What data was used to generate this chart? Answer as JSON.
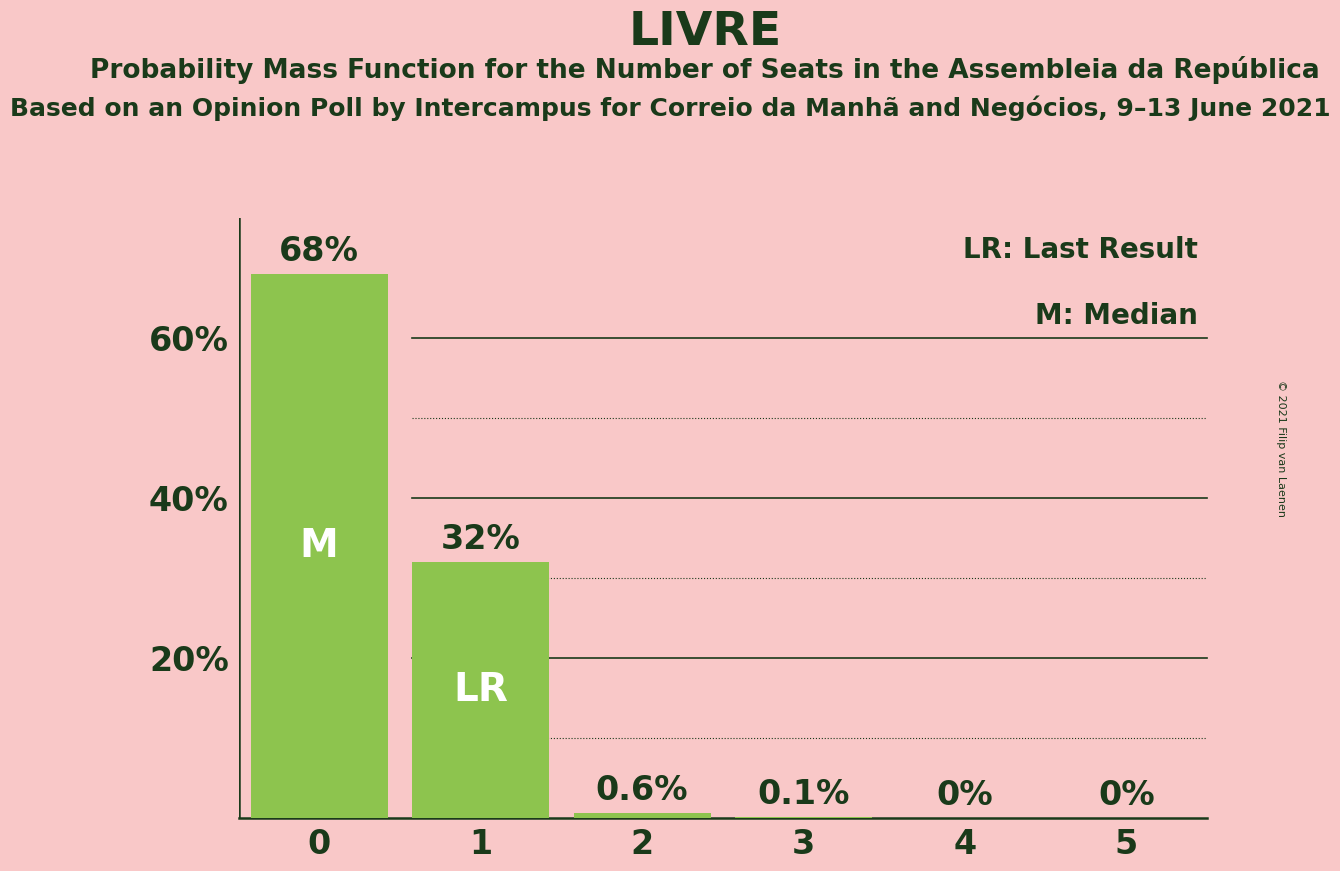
{
  "title": "LIVRE",
  "subtitle1": "Probability Mass Function for the Number of Seats in the Assembleia da República",
  "subtitle2": "Based on an Opinion Poll by Intercampus for Correio da Manhã and Negócios, 9–13 June 2021",
  "copyright": "© 2021 Filip van Laenen",
  "categories": [
    0,
    1,
    2,
    3,
    4,
    5
  ],
  "values": [
    68.0,
    32.0,
    0.6,
    0.1,
    0.0,
    0.0
  ],
  "bar_labels": [
    "68%",
    "32%",
    "0.6%",
    "0.1%",
    "0%",
    "0%"
  ],
  "bar_color": "#8dc44e",
  "background_color": "#f9c8c8",
  "text_color": "#1a3a1a",
  "bar_text_color": "#ffffff",
  "bar_label_above_color": "#1a3a1a",
  "median_bar": 0,
  "lr_bar": 1,
  "median_label": "M",
  "lr_label": "LR",
  "legend_lr": "LR: Last Result",
  "legend_m": "M: Median",
  "ylim": [
    0,
    75
  ],
  "solid_gridlines": [
    20,
    40,
    60
  ],
  "dotted_gridlines": [
    10,
    30,
    50
  ],
  "title_fontsize": 34,
  "subtitle1_fontsize": 19,
  "subtitle2_fontsize": 18,
  "axis_fontsize": 24,
  "bar_label_fontsize": 24,
  "inner_label_fontsize": 28,
  "legend_fontsize": 20,
  "copyright_fontsize": 8
}
